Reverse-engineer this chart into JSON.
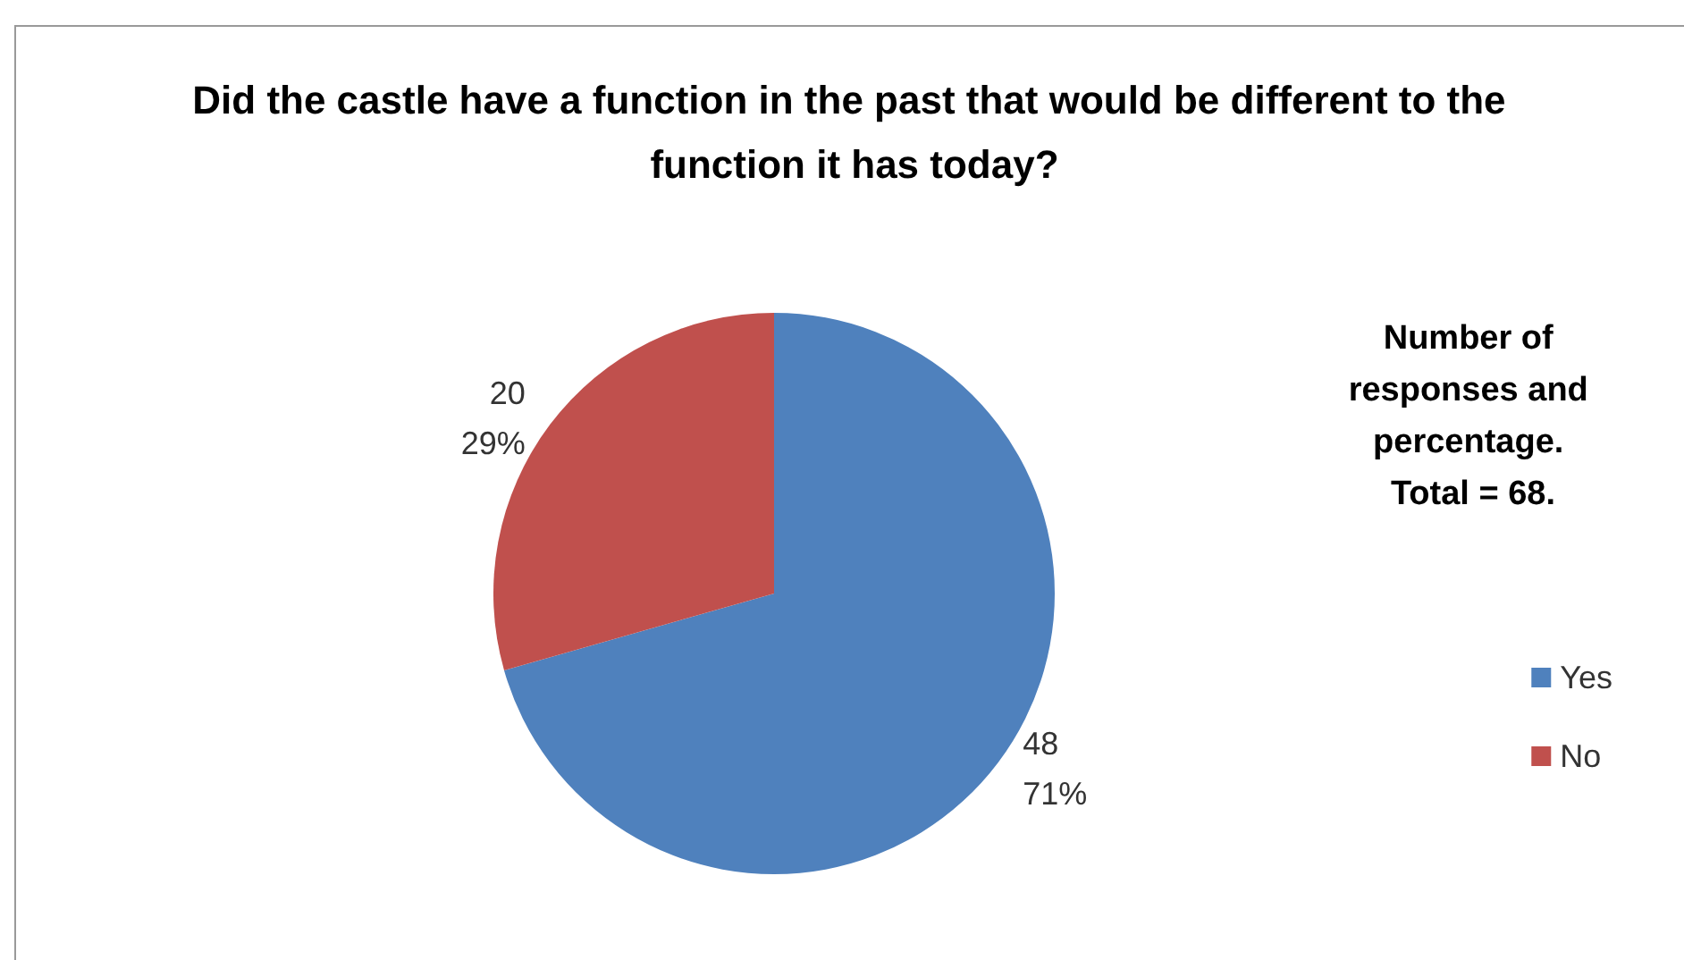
{
  "chart_data": {
    "type": "pie",
    "title": "Did the castle have a function in the past that would be different to the function it has today?",
    "legend_title": "Number of responses and percentage. Total = 68.",
    "categories": [
      "Yes",
      "No"
    ],
    "values": [
      48,
      20
    ],
    "colors": [
      "#4f81bd",
      "#c0504d"
    ],
    "value_labels": [
      "48\n71%",
      "20\n29%"
    ],
    "legend": "right"
  }
}
